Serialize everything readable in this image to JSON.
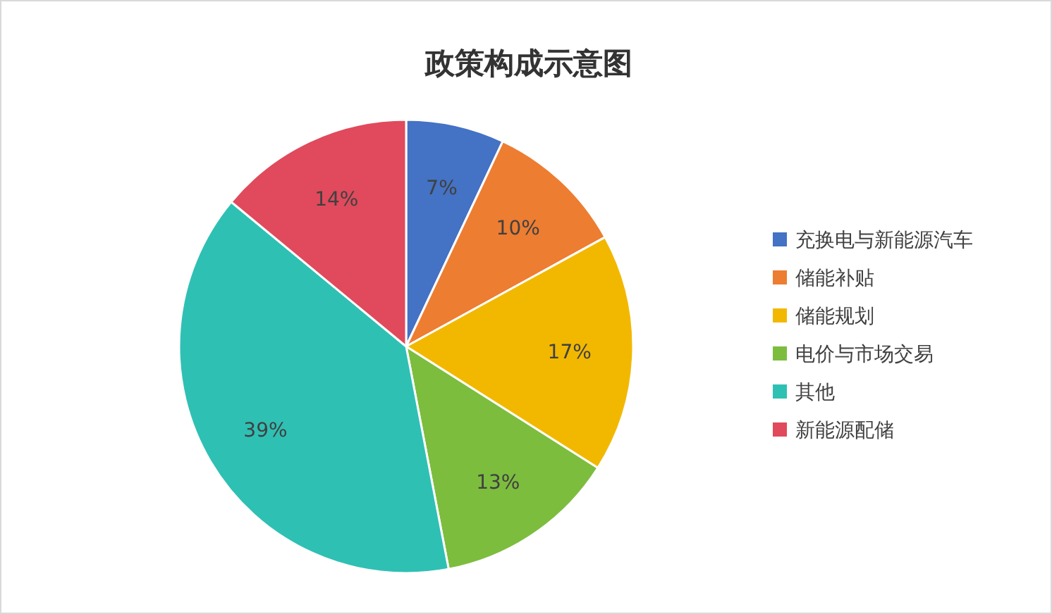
{
  "chart_data": {
    "type": "pie",
    "title": "政策构成示意图",
    "categories": [
      "充换电与新能源汽车",
      "储能补贴",
      "储能规划",
      "电价与市场交易",
      "其他",
      "新能源配储"
    ],
    "values": [
      7,
      10,
      17,
      13,
      39,
      14
    ],
    "colors": [
      "#4472c4",
      "#ed7d31",
      "#f2b800",
      "#7cbd3e",
      "#2fc0b4",
      "#e04a5c"
    ],
    "value_labels": [
      "7%",
      "10%",
      "17%",
      "13%",
      "39%",
      "14%"
    ],
    "legend": "right"
  }
}
